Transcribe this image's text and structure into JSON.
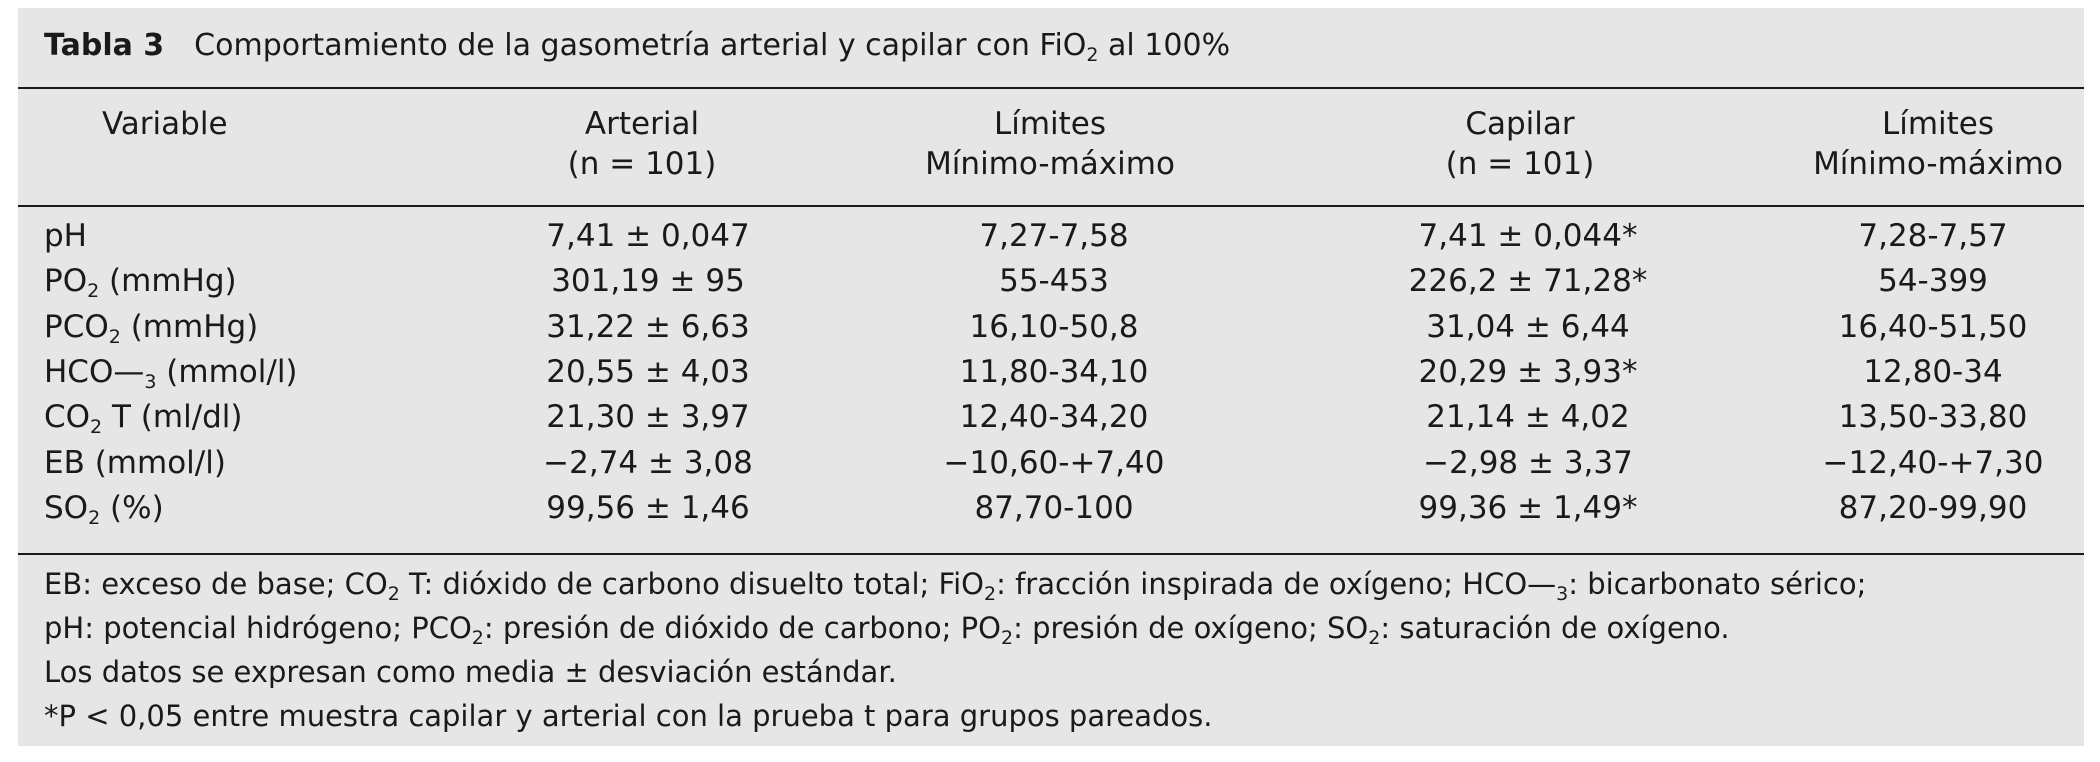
{
  "table": {
    "label": "Tabla 3",
    "title_main": "Comportamiento de la gasometría arterial y capilar con FiO",
    "title_sub": "2",
    "title_end": " al 100%",
    "headers": {
      "variable": "Variable",
      "arterial_1": "Arterial",
      "arterial_2": "(n = 101)",
      "limits_a_1": "Límites",
      "limits_a_2": "Mínimo-máximo",
      "capilar_1": "Capilar",
      "capilar_2": "(n = 101)",
      "limits_c_1": "Límites",
      "limits_c_2": "Mínimo-máximo"
    },
    "rows": [
      {
        "v_main": "pH",
        "v_sub": "",
        "v_end": "",
        "arterial": "7,41 ± 0,047",
        "lim_a": "7,27-7,58",
        "capilar": "7,41 ± 0,044*",
        "lim_c": "7,28-7,57"
      },
      {
        "v_main": "PO",
        "v_sub": "2",
        "v_end": " (mmHg)",
        "arterial": "301,19 ± 95",
        "lim_a": "55-453",
        "capilar": "226,2 ± 71,28*",
        "lim_c": "54-399"
      },
      {
        "v_main": "PCO",
        "v_sub": "2",
        "v_end": " (mmHg)",
        "arterial": "31,22 ± 6,63",
        "lim_a": "16,10-50,8",
        "capilar": "31,04 ± 6,44",
        "lim_c": "16,40-51,50"
      },
      {
        "v_main": "HCO—",
        "v_sub": "3",
        "v_end": " (mmol/l)",
        "arterial": "20,55 ± 4,03",
        "lim_a": "11,80-34,10",
        "capilar": "20,29 ± 3,93*",
        "lim_c": "12,80-34"
      },
      {
        "v_main": "CO",
        "v_sub": "2",
        "v_end": " T (ml/dl)",
        "arterial": "21,30 ± 3,97",
        "lim_a": "12,40-34,20",
        "capilar": "21,14 ± 4,02",
        "lim_c": "13,50-33,80"
      },
      {
        "v_main": "EB (mmol/l)",
        "v_sub": "",
        "v_end": "",
        "arterial": "−2,74 ± 3,08",
        "lim_a": "−10,60-+7,40",
        "capilar": "−2,98 ± 3,37",
        "lim_c": "−12,40-+7,30"
      },
      {
        "v_main": "SO",
        "v_sub": "2",
        "v_end": " (%)",
        "arterial": "99,56 ± 1,46",
        "lim_a": "87,70-100",
        "capilar": "99,36 ± 1,49*",
        "lim_c": "87,20-99,90"
      }
    ],
    "footnotes": {
      "line1": [
        {
          "t": "EB: exceso de base; CO",
          "s": "2"
        },
        {
          "t": " T: dióxido de carbono disuelto total; FiO",
          "s": "2"
        },
        {
          "t": ": fracción inspirada de oxígeno; HCO—",
          "s": "3"
        },
        {
          "t": ": bicarbonato sérico;",
          "s": ""
        }
      ],
      "line2": [
        {
          "t": "pH: potencial hidrógeno; PCO",
          "s": "2"
        },
        {
          "t": ": presión de dióxido de carbono; PO",
          "s": "2"
        },
        {
          "t": ": presión de oxígeno; SO",
          "s": "2"
        },
        {
          "t": ": saturación de oxígeno.",
          "s": ""
        }
      ],
      "line3": "Los datos se expresan como media ± desviación estándar.",
      "line4": "*P < 0,05 entre muestra capilar y arterial con la prueba t para grupos pareados."
    }
  }
}
